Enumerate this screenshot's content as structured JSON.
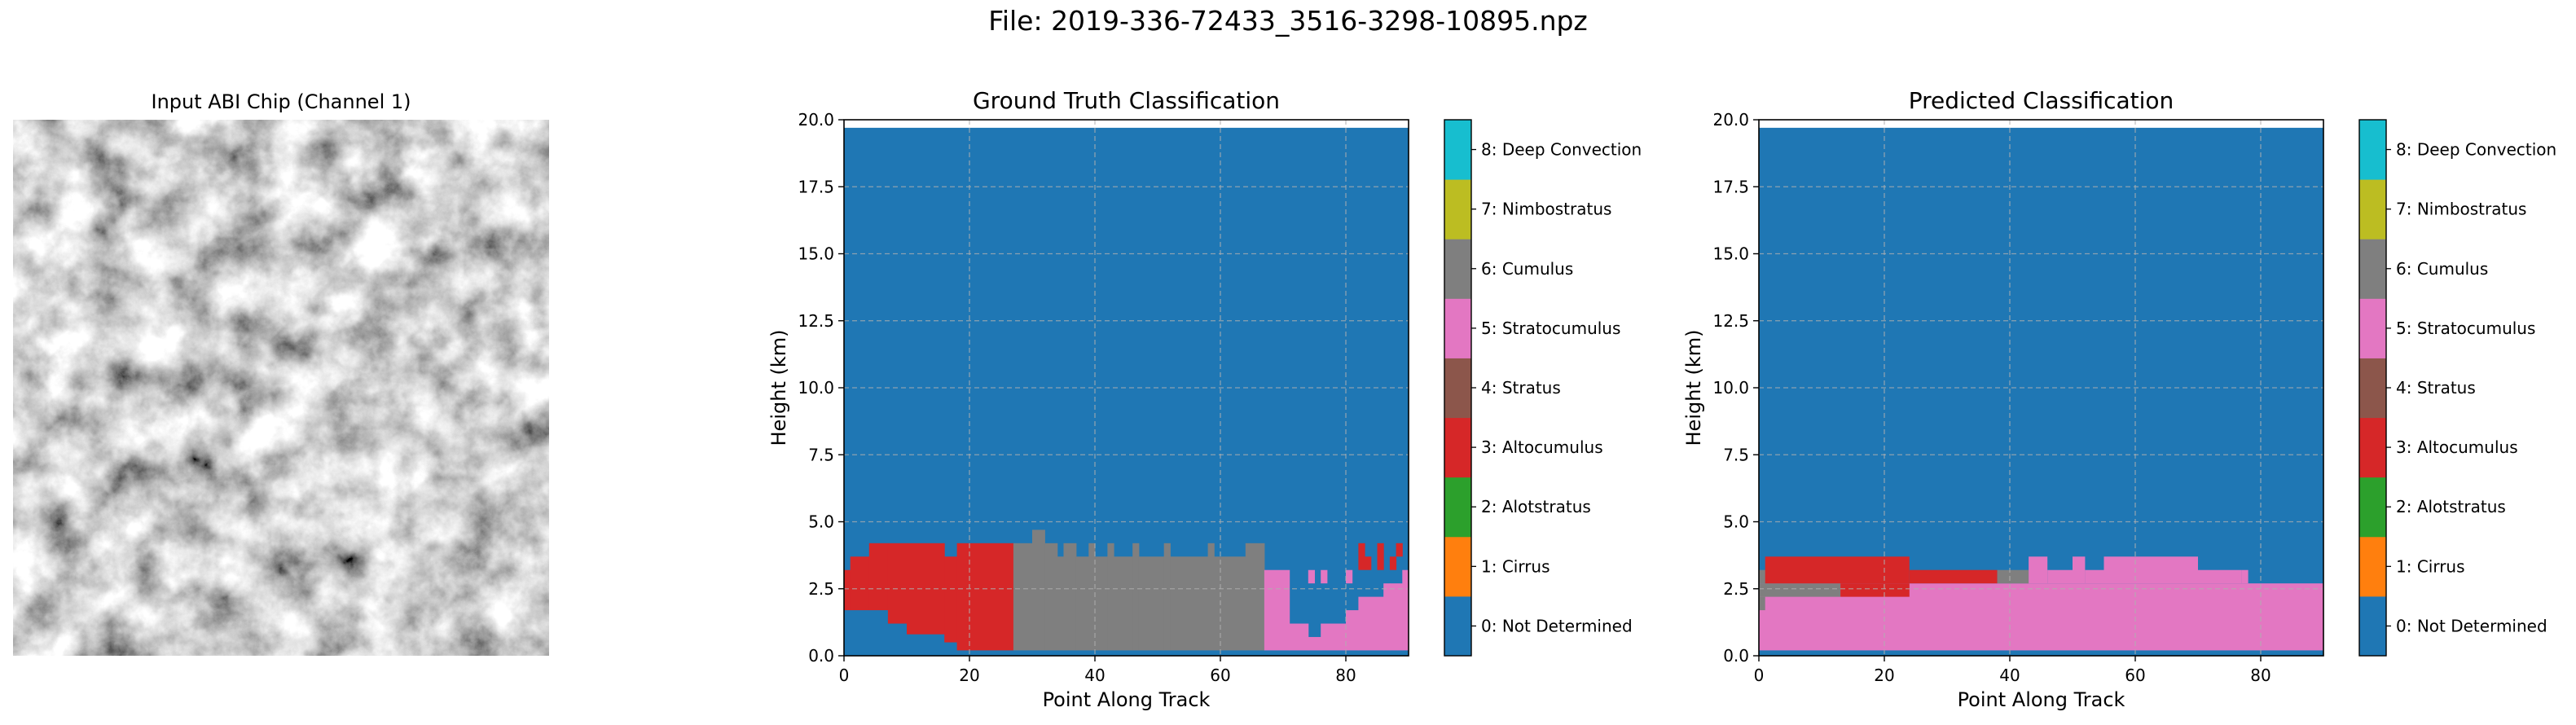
{
  "figure_title": "File: 2019-336-72433_3516-3298-10895.npz",
  "chip_title": "Input ABI Chip (Channel 1)",
  "classes": [
    {
      "label": "0: Not Determined",
      "color": "#1f77b4"
    },
    {
      "label": "1: Cirrus",
      "color": "#ff7f0e"
    },
    {
      "label": "2: Alotstratus",
      "color": "#2ca02c"
    },
    {
      "label": "3: Altocumulus",
      "color": "#d62728"
    },
    {
      "label": "4: Stratus",
      "color": "#8c564b"
    },
    {
      "label": "5: Stratocumulus",
      "color": "#e377c2"
    },
    {
      "label": "6: Cumulus",
      "color": "#7f7f7f"
    },
    {
      "label": "7: Nimbostratus",
      "color": "#bcbd22"
    },
    {
      "label": "8: Deep Convection",
      "color": "#17becf"
    }
  ],
  "chart_data": [
    {
      "type": "heatmap",
      "title": "Ground Truth Classification",
      "xlabel": "Point Along Track",
      "ylabel": "Height (km)",
      "xlim": [
        0,
        90
      ],
      "ylim": [
        0,
        20
      ],
      "xticks": [
        "0",
        "20",
        "40",
        "60",
        "80"
      ],
      "yticks": [
        "0.0",
        "2.5",
        "5.0",
        "7.5",
        "10.0",
        "12.5",
        "15.0",
        "17.5",
        "20.0"
      ],
      "grid": true,
      "background_class": 0,
      "cloud_columns": [
        [
          0,
          1.7,
          3.2,
          3
        ],
        [
          1,
          1.7,
          3.7,
          3
        ],
        [
          4,
          1.7,
          4.2,
          3
        ],
        [
          7,
          1.2,
          4.2,
          3
        ],
        [
          10,
          0.8,
          4.2,
          3
        ],
        [
          16,
          0.5,
          3.7,
          3
        ],
        [
          18,
          0.2,
          4.2,
          3
        ],
        [
          27,
          0.2,
          4.2,
          6
        ],
        [
          30,
          0.2,
          4.7,
          6
        ],
        [
          32,
          0.2,
          4.2,
          6
        ],
        [
          34,
          0.2,
          3.7,
          6
        ],
        [
          35,
          0.2,
          4.2,
          6
        ],
        [
          37,
          0.2,
          3.7,
          6
        ],
        [
          39,
          0.2,
          4.2,
          6
        ],
        [
          40,
          0.2,
          3.7,
          6
        ],
        [
          42,
          0.2,
          4.2,
          6
        ],
        [
          43,
          0.2,
          3.7,
          6
        ],
        [
          46,
          0.2,
          4.2,
          6
        ],
        [
          47,
          0.2,
          3.7,
          6
        ],
        [
          51,
          0.2,
          4.2,
          6
        ],
        [
          52,
          0.2,
          3.7,
          6
        ],
        [
          58,
          0.2,
          4.2,
          6
        ],
        [
          59,
          0.2,
          3.7,
          6
        ],
        [
          64,
          0.2,
          4.2,
          6
        ],
        [
          67,
          0.2,
          3.2,
          5
        ],
        [
          71,
          0.2,
          1.2,
          5
        ],
        [
          74,
          0.2,
          0.7,
          5
        ],
        [
          76,
          0.2,
          1.2,
          5
        ],
        [
          80,
          0.2,
          1.7,
          5
        ],
        [
          82,
          0.2,
          2.2,
          5
        ],
        [
          86,
          0.2,
          2.7,
          5
        ],
        [
          87,
          0.2,
          2.7,
          5
        ],
        [
          89,
          0.2,
          3.2,
          5
        ]
      ],
      "extra_cells": [
        [
          82,
          3.2,
          4.2,
          3
        ],
        [
          83,
          3.2,
          3.7,
          3
        ],
        [
          85,
          3.2,
          4.2,
          3
        ],
        [
          87,
          3.2,
          3.7,
          3
        ],
        [
          88,
          3.7,
          4.2,
          3
        ],
        [
          74,
          2.7,
          3.2,
          5
        ],
        [
          76,
          2.7,
          3.2,
          5
        ],
        [
          80,
          2.7,
          3.2,
          5
        ]
      ]
    },
    {
      "type": "heatmap",
      "title": "Predicted Classification",
      "xlabel": "Point Along Track",
      "ylabel": "Height (km)",
      "xlim": [
        0,
        90
      ],
      "ylim": [
        0,
        20
      ],
      "xticks": [
        "0",
        "20",
        "40",
        "60",
        "80"
      ],
      "yticks": [
        "0.0",
        "2.5",
        "5.0",
        "7.5",
        "10.0",
        "12.5",
        "15.0",
        "17.5",
        "20.0"
      ],
      "grid": true,
      "background_class": 0,
      "regions": [
        [
          0,
          90,
          0.2,
          2.7,
          5
        ],
        [
          0,
          13,
          2.2,
          2.7,
          6
        ],
        [
          0,
          1,
          1.7,
          2.2,
          6
        ],
        [
          0,
          2,
          2.7,
          3.2,
          6
        ],
        [
          1,
          24,
          2.7,
          3.7,
          3
        ],
        [
          13,
          24,
          2.2,
          2.7,
          3
        ],
        [
          24,
          38,
          2.7,
          3.2,
          3
        ],
        [
          38,
          43,
          2.7,
          3.2,
          6
        ],
        [
          43,
          46,
          2.7,
          3.7,
          5
        ],
        [
          46,
          50,
          2.7,
          3.2,
          5
        ],
        [
          50,
          52,
          2.7,
          3.7,
          5
        ],
        [
          52,
          55,
          2.7,
          3.2,
          5
        ],
        [
          55,
          70,
          2.7,
          3.7,
          5
        ],
        [
          70,
          75,
          2.7,
          3.2,
          5
        ],
        [
          75,
          77,
          2.7,
          3.2,
          5
        ],
        [
          77,
          78,
          2.7,
          3.2,
          5
        ]
      ]
    }
  ]
}
